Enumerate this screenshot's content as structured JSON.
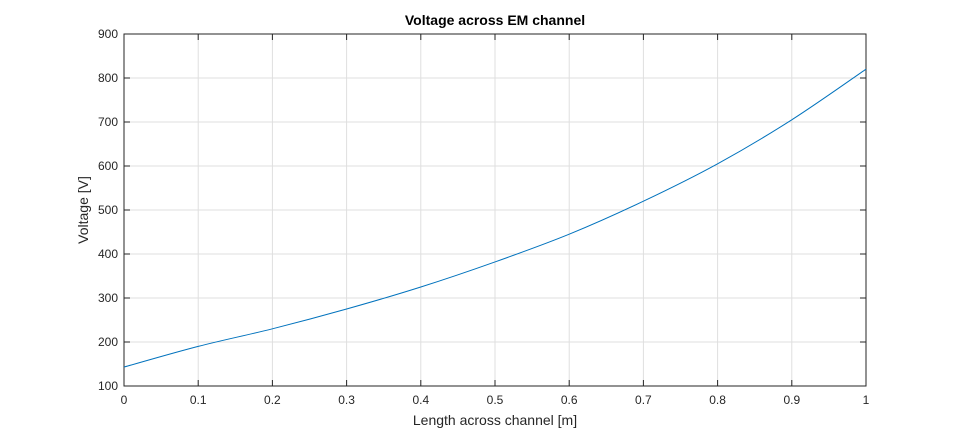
{
  "chart_data": {
    "type": "line",
    "title": "Voltage across EM channel",
    "xlabel": "Length across channel [m]",
    "ylabel": "Voltage [V]",
    "xlim": [
      0,
      1
    ],
    "ylim": [
      100,
      900
    ],
    "xticks": [
      "0",
      "0.1",
      "0.2",
      "0.3",
      "0.4",
      "0.5",
      "0.6",
      "0.7",
      "0.8",
      "0.9",
      "1"
    ],
    "yticks": [
      "100",
      "200",
      "300",
      "400",
      "500",
      "600",
      "700",
      "800",
      "900"
    ],
    "grid": true,
    "line_color": "#0072BD",
    "series": [
      {
        "x": [
          0,
          0.1,
          0.2,
          0.3,
          0.4,
          0.5,
          0.6,
          0.7,
          0.8,
          0.9,
          1.0
        ],
        "values": [
          143,
          190,
          230,
          275,
          325,
          382,
          445,
          520,
          605,
          705,
          820
        ]
      }
    ]
  }
}
